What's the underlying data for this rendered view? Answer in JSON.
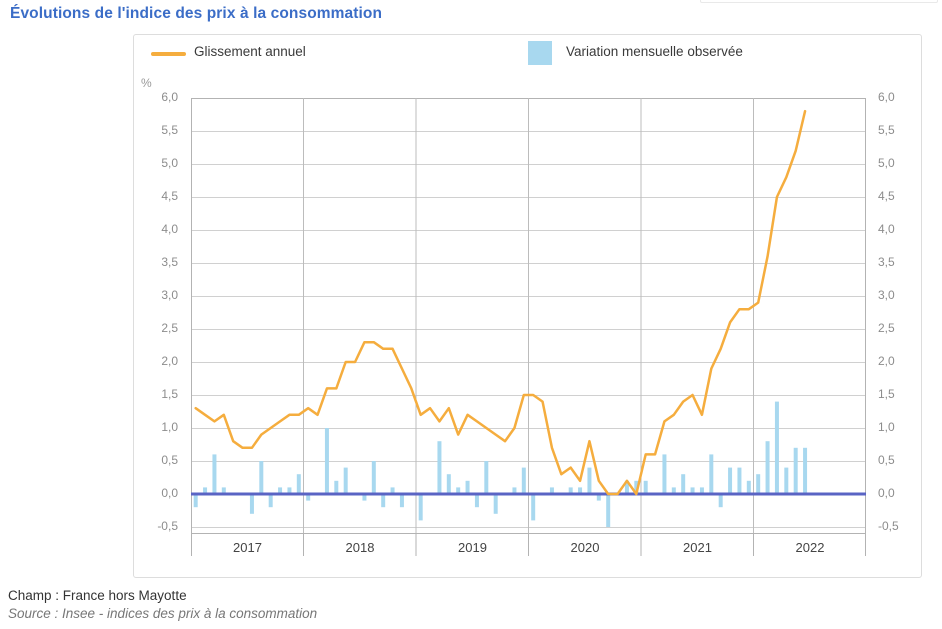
{
  "page": {
    "title": "Évolutions de l'indice des prix à la consommation",
    "footer": {
      "champ": "Champ : France hors Mayotte",
      "source": "Source : Insee - indices des prix à la consommation"
    }
  },
  "legend": {
    "line_label": "Glissement annuel",
    "bar_label": "Variation mensuelle observée"
  },
  "axis": {
    "unit_label": "%",
    "tick_labels": [
      "6,0",
      "5,5",
      "5,0",
      "4,5",
      "4,0",
      "3,5",
      "3,0",
      "2,5",
      "2,0",
      "1,5",
      "1,0",
      "0,5",
      "0,0",
      "-0,5"
    ],
    "year_labels": [
      "2017",
      "2018",
      "2019",
      "2020",
      "2021",
      "2022"
    ]
  },
  "colors": {
    "title": "#3B6DC7",
    "line": "#F5AD3E",
    "bar": "#A8D8EF",
    "zero_line": "#5A64C4",
    "grid_h": "#D0D0D0",
    "grid_v": "#BCBCBC",
    "axis_border": "#B3B3B3"
  },
  "chart_data": {
    "type": "combo-line-bar",
    "title": "Évolutions de l'indice des prix à la consommation",
    "x_unit": "month",
    "x_years": [
      "2017",
      "2018",
      "2019",
      "2020",
      "2021",
      "2022"
    ],
    "x_range": "2017-01 to 2022-06",
    "ylabel": "%",
    "ylim": [
      -0.5,
      6.0
    ],
    "y_step": 0.5,
    "grid": true,
    "legend_position": "top",
    "series": [
      {
        "name": "Glissement annuel",
        "type": "line",
        "color": "#F5AD3E",
        "values": [
          1.3,
          1.2,
          1.1,
          1.2,
          0.8,
          0.7,
          0.7,
          0.9,
          1.0,
          1.1,
          1.2,
          1.2,
          1.3,
          1.2,
          1.6,
          1.6,
          2.0,
          2.0,
          2.3,
          2.3,
          2.2,
          2.2,
          1.9,
          1.6,
          1.2,
          1.3,
          1.1,
          1.3,
          0.9,
          1.2,
          1.1,
          1.0,
          0.9,
          0.8,
          1.0,
          1.5,
          1.5,
          1.4,
          0.7,
          0.3,
          0.4,
          0.2,
          0.8,
          0.2,
          0.0,
          0.0,
          0.2,
          0.0,
          0.6,
          0.6,
          1.1,
          1.2,
          1.4,
          1.5,
          1.2,
          1.9,
          2.2,
          2.6,
          2.8,
          2.8,
          2.9,
          3.6,
          4.5,
          4.8,
          5.2,
          5.8
        ]
      },
      {
        "name": "Variation mensuelle observée",
        "type": "bar",
        "color": "#A8D8EF",
        "values": [
          -0.2,
          0.1,
          0.6,
          0.1,
          0.0,
          0.0,
          -0.3,
          0.5,
          -0.2,
          0.1,
          0.1,
          0.3,
          -0.1,
          0.0,
          1.0,
          0.2,
          0.4,
          0.0,
          -0.1,
          0.5,
          -0.2,
          0.1,
          -0.2,
          0.0,
          -0.4,
          0.0,
          0.8,
          0.3,
          0.1,
          0.2,
          -0.2,
          0.5,
          -0.3,
          0.0,
          0.1,
          0.4,
          -0.4,
          0.0,
          0.1,
          0.0,
          0.1,
          0.1,
          0.4,
          -0.1,
          -0.5,
          0.0,
          0.2,
          0.2,
          0.2,
          0.0,
          0.6,
          0.1,
          0.3,
          0.1,
          0.1,
          0.6,
          -0.2,
          0.4,
          0.4,
          0.2,
          0.3,
          0.8,
          1.4,
          0.4,
          0.7,
          0.7
        ]
      }
    ]
  }
}
